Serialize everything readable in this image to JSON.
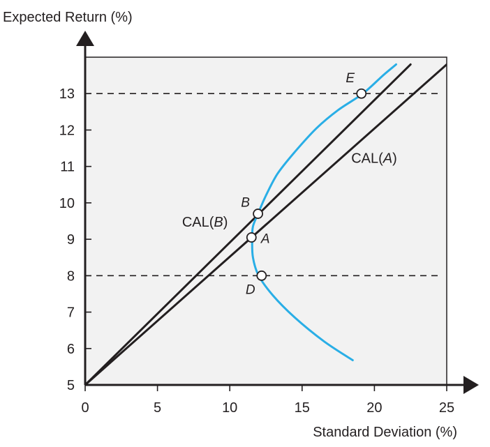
{
  "chart_data": {
    "type": "line",
    "title": "",
    "xlabel": "Standard Deviation (%)",
    "ylabel": "Expected Return (%)",
    "xlim": [
      0,
      25
    ],
    "ylim": [
      5,
      14
    ],
    "x_ticks": [
      0,
      5,
      10,
      15,
      20,
      25
    ],
    "y_ticks": [
      5,
      6,
      7,
      8,
      9,
      10,
      11,
      12,
      13
    ],
    "colors": {
      "frontier": "#29aee6",
      "cal": "#231f20",
      "axes": "#231f20",
      "plot_background": "#f2f2f2"
    },
    "series": [
      {
        "name": "CAL(B)",
        "x": [
          0,
          22.5
        ],
        "y": [
          5,
          13.8
        ]
      },
      {
        "name": "CAL(A)",
        "x": [
          0,
          25
        ],
        "y": [
          5,
          13.8
        ]
      },
      {
        "name": "",
        "x": [
          18.5,
          16.5,
          14.5,
          13.0,
          12.0,
          11.6,
          11.55,
          11.6,
          11.95,
          12.5,
          13.3,
          14.5,
          16.0,
          17.5,
          19.2,
          20.6,
          21.5
        ],
        "y": [
          5.68,
          6.2,
          6.85,
          7.45,
          8.0,
          8.5,
          9.0,
          9.35,
          9.7,
          10.2,
          10.8,
          11.4,
          12.05,
          12.55,
          13.0,
          13.5,
          13.8
        ]
      }
    ],
    "reference_lines": [
      {
        "axis": "y",
        "value": 13,
        "style": "dashed"
      },
      {
        "axis": "y",
        "value": 8,
        "style": "dashed"
      }
    ],
    "points": [
      {
        "label": "E",
        "x": 19.1,
        "y": 13.0,
        "label_dx": -16,
        "label_dy": -16
      },
      {
        "label": "B",
        "x": 11.95,
        "y": 9.7,
        "label_dx": -18,
        "label_dy": -10
      },
      {
        "label": "A",
        "x": 11.5,
        "y": 9.05,
        "label_dx": 20,
        "label_dy": 8
      },
      {
        "label": "D",
        "x": 12.2,
        "y": 8.0,
        "label_dx": -16,
        "label_dy": 26
      }
    ],
    "curve_labels": [
      {
        "text": "CAL(A)",
        "x": 18.4,
        "y": 11.1
      },
      {
        "text": "CAL(B)",
        "x": 6.7,
        "y": 9.35
      }
    ],
    "grid": false,
    "legend": "none"
  }
}
